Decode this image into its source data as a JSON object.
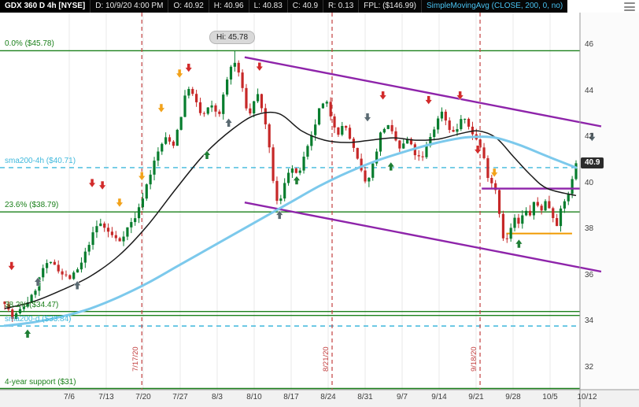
{
  "header": {
    "symbol": "GDX 360 D 4h [NYSE]",
    "fields": [
      "D: 10/9/20 4:00 PM",
      "O: 40.92",
      "H: 40.96",
      "L: 40.83",
      "C: 40.9",
      "R: 0.13",
      "FPL: ($146.99)"
    ],
    "study": "SimpleMovingAvg (CLOSE, 200, 0, no)"
  },
  "colors": {
    "up": "#077d2e",
    "down": "#c62828",
    "sma_fast": "#1a1a1a",
    "sma200": "#7cc9ec",
    "channel": "#8e24aa",
    "support": "#f09a00",
    "vline": "#c34040",
    "axis_text": "#3d3d3d",
    "study_text": "#49c3f2",
    "arrow": {
      "red": "#d22b2b",
      "yellow": "#f2a21a",
      "green": "#1e7e34",
      "gray": "#5a6a72"
    }
  },
  "chart_data": {
    "type": "candlestick",
    "title": "GDX 360 D 4h [NYSE]",
    "timeframe": "4h",
    "last_price": 40.9,
    "high": 45.78,
    "high_tooltip": "Hi: 45.78",
    "bars_count": 150,
    "last_bar": {
      "o": 40.92,
      "h": 40.96,
      "l": 40.83,
      "c": 40.9
    },
    "y_axis": {
      "ticks": [
        46,
        44,
        42,
        40,
        38,
        36,
        34,
        32
      ],
      "min": 31.1,
      "max": 46.4
    },
    "x_axis": {
      "labels": [
        "7/6",
        "7/13",
        "7/20",
        "7/27",
        "8/3",
        "8/10",
        "8/17",
        "8/24",
        "8/31",
        "9/7",
        "9/14",
        "9/21",
        "9/28",
        "10/5",
        "10/12"
      ]
    },
    "vertical_lines": [
      {
        "label": "7/17/20",
        "t": 0.24
      },
      {
        "label": "8/21/20",
        "t": 0.573
      },
      {
        "label": "9/18/20",
        "t": 0.832
      }
    ],
    "levels": [
      {
        "label": "0.0%  ($45.78)",
        "price": 45.78,
        "color": "#1b801b",
        "style": "solid"
      },
      {
        "label": "23.6% ($38.79)",
        "price": 38.79,
        "color": "#1b801b",
        "style": "solid"
      },
      {
        "label": "38.2% ($34.47)",
        "price": 34.47,
        "color": "#1b801b",
        "style": "solid"
      },
      {
        "label": "",
        "price": 34.3,
        "color": "#1b801b",
        "style": "solid"
      },
      {
        "label": "sma200-4h ($40.71)",
        "price": 40.71,
        "color": "#3fb8dc",
        "style": "dashed"
      },
      {
        "label": "sma200-d ($33.84)",
        "price": 33.84,
        "color": "#3fb8dc",
        "style": "dashed"
      },
      {
        "label": "4-year support ($31)",
        "price": 31,
        "color": "#1b801b",
        "style": "solid"
      }
    ],
    "channel": {
      "upper": {
        "t1": 0.42,
        "p1": 45.5,
        "t2": 1.044,
        "p2": 42.5
      },
      "lower": {
        "t1": 0.42,
        "p1": 39.2,
        "t2": 1.044,
        "p2": 36.2
      },
      "flat": {
        "t1": 0.835,
        "p1": 39.8,
        "t2": 1.007,
        "p2": 39.8
      }
    },
    "orange_support": {
      "t1": 0.878,
      "t2": 0.993,
      "price": 37.85
    },
    "price_path_anchors": [
      [
        0.0,
        34.9
      ],
      [
        0.013,
        34.15
      ],
      [
        0.03,
        34.6
      ],
      [
        0.05,
        35.2
      ],
      [
        0.068,
        36.4
      ],
      [
        0.085,
        36.6
      ],
      [
        0.1,
        36.1
      ],
      [
        0.115,
        35.9
      ],
      [
        0.132,
        36.4
      ],
      [
        0.15,
        37.6
      ],
      [
        0.165,
        38.35
      ],
      [
        0.182,
        37.9
      ],
      [
        0.2,
        37.5
      ],
      [
        0.215,
        38.1
      ],
      [
        0.232,
        38.7
      ],
      [
        0.25,
        40.1
      ],
      [
        0.265,
        41.2
      ],
      [
        0.28,
        42.0
      ],
      [
        0.295,
        41.7
      ],
      [
        0.31,
        43.1
      ],
      [
        0.32,
        44.3
      ],
      [
        0.332,
        43.7
      ],
      [
        0.345,
        42.9
      ],
      [
        0.36,
        43.4
      ],
      [
        0.375,
        43.0
      ],
      [
        0.39,
        44.6
      ],
      [
        0.4,
        45.4
      ],
      [
        0.41,
        44.8
      ],
      [
        0.42,
        43.6
      ],
      [
        0.428,
        42.9
      ],
      [
        0.437,
        43.7
      ],
      [
        0.445,
        43.9
      ],
      [
        0.455,
        42.7
      ],
      [
        0.465,
        41.2
      ],
      [
        0.473,
        39.5
      ],
      [
        0.48,
        38.95
      ],
      [
        0.49,
        40.1
      ],
      [
        0.5,
        40.8
      ],
      [
        0.512,
        40.3
      ],
      [
        0.525,
        41.2
      ],
      [
        0.538,
        42.1
      ],
      [
        0.55,
        43.2
      ],
      [
        0.562,
        43.6
      ],
      [
        0.573,
        42.8
      ],
      [
        0.583,
        42.2
      ],
      [
        0.595,
        42.6
      ],
      [
        0.608,
        41.7
      ],
      [
        0.622,
        40.7
      ],
      [
        0.632,
        39.95
      ],
      [
        0.645,
        40.9
      ],
      [
        0.658,
        42.2
      ],
      [
        0.668,
        42.6
      ],
      [
        0.68,
        42.1
      ],
      [
        0.692,
        41.5
      ],
      [
        0.705,
        41.95
      ],
      [
        0.718,
        41.3
      ],
      [
        0.73,
        41.0
      ],
      [
        0.742,
        41.9
      ],
      [
        0.755,
        42.6
      ],
      [
        0.765,
        43.2
      ],
      [
        0.776,
        42.5
      ],
      [
        0.788,
        42.15
      ],
      [
        0.8,
        42.9
      ],
      [
        0.812,
        42.5
      ],
      [
        0.824,
        42.0
      ],
      [
        0.836,
        41.4
      ],
      [
        0.845,
        40.4
      ],
      [
        0.854,
        40.0
      ],
      [
        0.861,
        39.7
      ],
      [
        0.869,
        38.1
      ],
      [
        0.876,
        37.35
      ],
      [
        0.884,
        37.95
      ],
      [
        0.892,
        38.5
      ],
      [
        0.901,
        38.2
      ],
      [
        0.91,
        38.9
      ],
      [
        0.918,
        38.6
      ],
      [
        0.928,
        39.25
      ],
      [
        0.938,
        38.85
      ],
      [
        0.948,
        39.3
      ],
      [
        0.957,
        38.75
      ],
      [
        0.966,
        38.25
      ],
      [
        0.974,
        38.9
      ],
      [
        0.983,
        39.4
      ],
      [
        0.991,
        39.9
      ],
      [
        1.0,
        40.9
      ]
    ],
    "sma200_anchors": [
      [
        0,
        33.85
      ],
      [
        0.05,
        34.0
      ],
      [
        0.1,
        34.25
      ],
      [
        0.15,
        34.6
      ],
      [
        0.2,
        35.1
      ],
      [
        0.25,
        35.7
      ],
      [
        0.3,
        36.4
      ],
      [
        0.35,
        37.1
      ],
      [
        0.4,
        37.8
      ],
      [
        0.45,
        38.5
      ],
      [
        0.5,
        39.2
      ],
      [
        0.55,
        39.9
      ],
      [
        0.6,
        40.5
      ],
      [
        0.65,
        41.0
      ],
      [
        0.7,
        41.4
      ],
      [
        0.75,
        41.75
      ],
      [
        0.8,
        42.0
      ],
      [
        0.83,
        42.05
      ],
      [
        0.86,
        42.0
      ],
      [
        0.9,
        41.7
      ],
      [
        0.94,
        41.3
      ],
      [
        0.97,
        41.0
      ],
      [
        1.0,
        40.71
      ]
    ],
    "sma_fast_anchors": [
      [
        0,
        34.6
      ],
      [
        0.05,
        34.9
      ],
      [
        0.1,
        35.4
      ],
      [
        0.15,
        36.0
      ],
      [
        0.2,
        36.9
      ],
      [
        0.25,
        38.2
      ],
      [
        0.3,
        39.8
      ],
      [
        0.35,
        41.3
      ],
      [
        0.4,
        42.4
      ],
      [
        0.44,
        43.0
      ],
      [
        0.48,
        43.05
      ],
      [
        0.52,
        42.3
      ],
      [
        0.56,
        41.9
      ],
      [
        0.6,
        41.8
      ],
      [
        0.64,
        41.9
      ],
      [
        0.68,
        42.0
      ],
      [
        0.72,
        41.9
      ],
      [
        0.76,
        41.95
      ],
      [
        0.8,
        42.2
      ],
      [
        0.83,
        42.3
      ],
      [
        0.86,
        42.0
      ],
      [
        0.89,
        41.2
      ],
      [
        0.92,
        40.4
      ],
      [
        0.95,
        39.8
      ],
      [
        1.0,
        39.5
      ]
    ],
    "arrows": [
      {
        "t": 0.012,
        "price": 36.25,
        "dir": "down",
        "color": "red"
      },
      {
        "t": 0.04,
        "price": 33.7,
        "dir": "up",
        "color": "green"
      },
      {
        "t": 0.058,
        "price": 35.95,
        "dir": "up",
        "color": "gray"
      },
      {
        "t": 0.127,
        "price": 35.8,
        "dir": "up",
        "color": "gray"
      },
      {
        "t": 0.153,
        "price": 39.85,
        "dir": "down",
        "color": "red"
      },
      {
        "t": 0.171,
        "price": 39.75,
        "dir": "down",
        "color": "red"
      },
      {
        "t": 0.201,
        "price": 39.0,
        "dir": "down",
        "color": "yellow"
      },
      {
        "t": 0.24,
        "price": 40.15,
        "dir": "down",
        "color": "yellow"
      },
      {
        "t": 0.274,
        "price": 43.1,
        "dir": "down",
        "color": "yellow"
      },
      {
        "t": 0.306,
        "price": 44.6,
        "dir": "down",
        "color": "yellow"
      },
      {
        "t": 0.322,
        "price": 44.85,
        "dir": "down",
        "color": "red"
      },
      {
        "t": 0.354,
        "price": 41.45,
        "dir": "up",
        "color": "green"
      },
      {
        "t": 0.392,
        "price": 42.85,
        "dir": "up",
        "color": "gray"
      },
      {
        "t": 0.446,
        "price": 44.9,
        "dir": "down",
        "color": "red"
      },
      {
        "t": 0.481,
        "price": 38.85,
        "dir": "up",
        "color": "gray"
      },
      {
        "t": 0.511,
        "price": 40.35,
        "dir": "up",
        "color": "green"
      },
      {
        "t": 0.635,
        "price": 42.7,
        "dir": "down",
        "color": "gray"
      },
      {
        "t": 0.662,
        "price": 43.65,
        "dir": "down",
        "color": "red"
      },
      {
        "t": 0.676,
        "price": 40.95,
        "dir": "up",
        "color": "green"
      },
      {
        "t": 0.742,
        "price": 43.45,
        "dir": "down",
        "color": "red"
      },
      {
        "t": 0.797,
        "price": 43.65,
        "dir": "down",
        "color": "red"
      },
      {
        "t": 0.828,
        "price": 41.3,
        "dir": "down",
        "color": "red"
      },
      {
        "t": 0.857,
        "price": 40.3,
        "dir": "down",
        "color": "yellow"
      },
      {
        "t": 0.9,
        "price": 37.6,
        "dir": "up",
        "color": "green"
      },
      {
        "t": 1.028,
        "price": 41.85,
        "dir": "down",
        "color": "gray"
      }
    ]
  }
}
